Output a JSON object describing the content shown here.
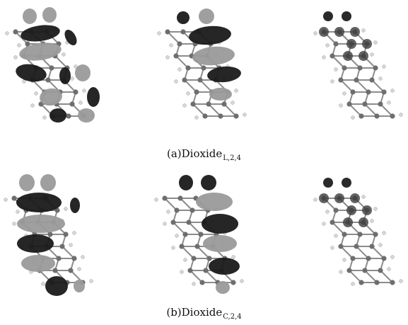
{
  "figure": {
    "caption_a": {
      "label": "(a)Dioxide",
      "subscript": "L,2,4"
    },
    "caption_b": {
      "label": "(b)Dioxide",
      "subscript": "C,2,4"
    },
    "panels_a": [
      "homo-orbital",
      "lumo-orbital",
      "spin-density"
    ],
    "panels_b": [
      "homo-orbital",
      "lumo-orbital",
      "spin-density"
    ],
    "colors": {
      "lobe_dark": "#1a1a1a",
      "lobe_light": "#9a9a9a",
      "atom_carbon": "#6e6e6e",
      "atom_hydrogen": "#d8d8d8",
      "atom_oxygen": "#8a8a8a",
      "bond": "#8c8c8c"
    }
  }
}
